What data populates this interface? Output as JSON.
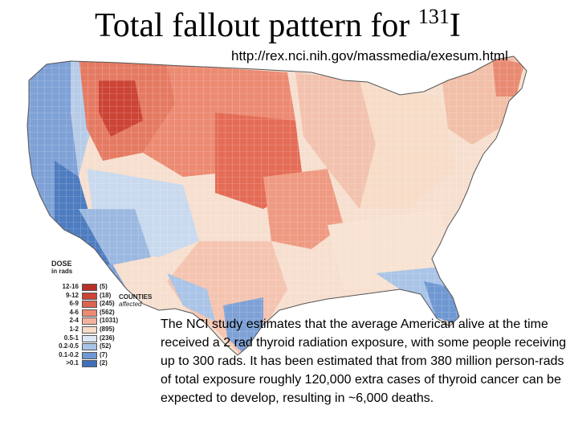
{
  "title": {
    "main": "Total fallout pattern for ",
    "isotope_mass": "131",
    "isotope_symbol": "I"
  },
  "url": "http://rex.nci.nih.gov/massmedia/exesum.html",
  "legend": {
    "heading_line1": "DOSE",
    "heading_line2": "in rads",
    "counties_line1": "COUNTIES",
    "counties_line2": "affected",
    "items": [
      {
        "range": "12-16",
        "count": "(5)",
        "color": "#b8302a"
      },
      {
        "range": "9-12",
        "count": "(18)",
        "color": "#cc4436"
      },
      {
        "range": "6-9",
        "count": "(245)",
        "color": "#dc6450"
      },
      {
        "range": "4-6",
        "count": "(562)",
        "color": "#ec8a72"
      },
      {
        "range": "2-4",
        "count": "(1031)",
        "color": "#f4b29e"
      },
      {
        "range": "1-2",
        "count": "(895)",
        "color": "#f7dcc8"
      },
      {
        "range": "0.5-1",
        "count": "(236)",
        "color": "#dde8f4"
      },
      {
        "range": "0.2-0.5",
        "count": "(52)",
        "color": "#a9c4e6"
      },
      {
        "range": "0.1-0.2",
        "count": "(7)",
        "color": "#6f98d2"
      },
      {
        "range": ">0.1",
        "count": "(2)",
        "color": "#3f6fb8"
      }
    ]
  },
  "body_text": "The NCI study estimates that the average American alive at the time received a 2 rad thyroid radiation exposure, with some people receiving up to 300 rads. It has been estimated that from 380 million person-rads of total exposure roughly 120,000 extra cases of thyroid cancer can be expected to develop, resulting in ~6,000 deaths."
}
